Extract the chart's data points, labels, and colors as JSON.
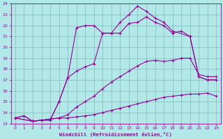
{
  "xlabel": "Windchill (Refroidissement éolien,°C)",
  "bg_color": "#b2e8e8",
  "grid_color": "#80b8b8",
  "line_color": "#990099",
  "xlim": [
    -0.5,
    23.5
  ],
  "ylim": [
    13,
    24
  ],
  "yticks": [
    13,
    14,
    15,
    16,
    17,
    18,
    19,
    20,
    21,
    22,
    23,
    24
  ],
  "xticks": [
    0,
    1,
    2,
    3,
    4,
    5,
    6,
    7,
    8,
    9,
    10,
    11,
    12,
    13,
    14,
    15,
    16,
    17,
    18,
    19,
    20,
    21,
    22,
    23
  ],
  "line1_x": [
    0,
    1,
    2,
    3,
    4,
    5,
    6,
    7,
    8,
    9,
    10,
    11,
    12,
    13,
    14,
    15,
    16,
    17,
    18,
    19,
    20,
    21,
    22,
    23
  ],
  "line1_y": [
    13.5,
    13.7,
    13.2,
    13.3,
    13.4,
    13.5,
    13.5,
    13.6,
    13.7,
    13.8,
    14.0,
    14.2,
    14.4,
    14.6,
    14.8,
    15.0,
    15.2,
    15.4,
    15.5,
    15.6,
    15.7,
    15.7,
    15.8,
    15.5
  ],
  "line2_x": [
    0,
    1,
    2,
    3,
    4,
    5,
    6,
    7,
    8,
    9,
    10,
    11,
    12,
    13,
    14,
    15,
    16,
    17,
    18,
    19,
    20,
    21,
    22,
    23
  ],
  "line2_y": [
    13.5,
    13.7,
    13.2,
    13.3,
    13.4,
    13.5,
    13.8,
    14.5,
    15.0,
    15.5,
    16.2,
    16.8,
    17.3,
    17.8,
    18.3,
    18.7,
    18.8,
    18.7,
    18.8,
    19.0,
    19.0,
    17.5,
    17.3,
    17.3
  ],
  "line3_x": [
    0,
    2,
    3,
    4,
    5,
    6,
    7,
    8,
    9,
    10,
    11,
    12,
    13,
    14,
    15,
    16,
    17,
    18,
    19,
    20,
    21,
    22,
    23
  ],
  "line3_y": [
    13.5,
    13.2,
    13.3,
    13.3,
    15.0,
    17.2,
    17.8,
    18.2,
    18.5,
    21.3,
    21.3,
    21.3,
    22.2,
    22.3,
    22.8,
    22.3,
    22.0,
    21.3,
    21.5,
    21.0,
    17.3,
    17.0,
    17.0
  ],
  "line4_x": [
    0,
    2,
    3,
    4,
    5,
    6,
    7,
    8,
    9,
    10,
    11,
    12,
    13,
    14,
    15,
    16,
    17,
    18,
    20,
    21,
    22,
    23
  ],
  "line4_y": [
    13.5,
    13.2,
    13.3,
    13.3,
    15.0,
    17.2,
    21.8,
    22.0,
    22.0,
    21.3,
    21.3,
    22.3,
    23.0,
    23.8,
    23.3,
    22.7,
    22.3,
    21.5,
    21.0,
    17.3,
    17.0,
    17.0
  ]
}
